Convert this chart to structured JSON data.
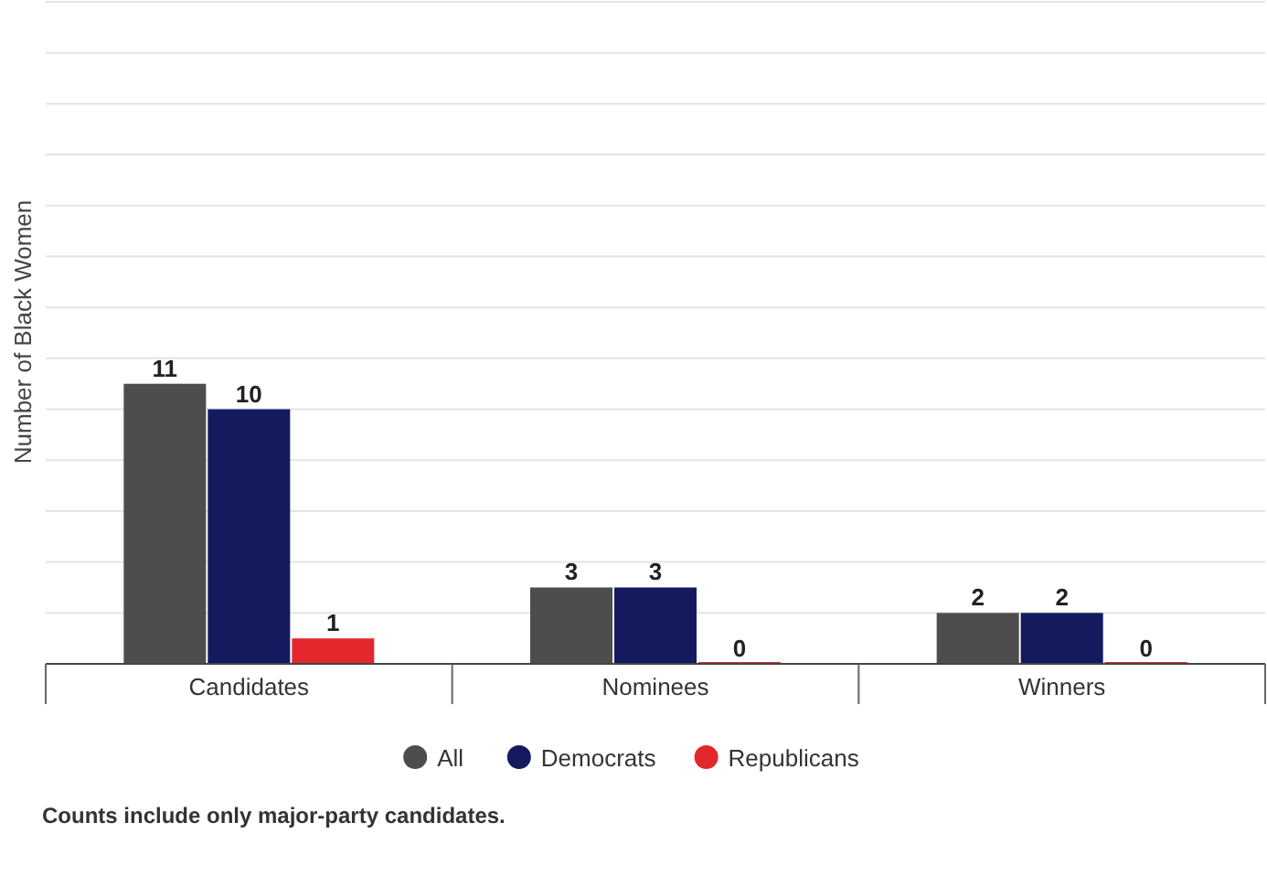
{
  "chart_data": {
    "type": "bar",
    "ylabel": "Number of Black Women",
    "categories": [
      "Candidates",
      "Nominees",
      "Winners"
    ],
    "series": [
      {
        "name": "All",
        "color": "#4d4d4d",
        "values": [
          11,
          3,
          2
        ]
      },
      {
        "name": "Democrats",
        "color": "#151a5f",
        "values": [
          10,
          3,
          2
        ]
      },
      {
        "name": "Republicans",
        "color": "#e3282d",
        "values": [
          1,
          0,
          0
        ]
      }
    ],
    "ylim": [
      0,
      26
    ],
    "yticks": [
      {
        "value": 0,
        "label": null
      },
      {
        "value": 2,
        "label": null
      },
      {
        "value": 4,
        "label": null
      },
      {
        "value": 6,
        "label": null
      },
      {
        "value": 8,
        "label": null
      },
      {
        "value": 10,
        "label": null
      },
      {
        "value": 12,
        "label": null
      },
      {
        "value": 14,
        "label": null
      },
      {
        "value": 16,
        "label": null
      },
      {
        "value": 18,
        "label": null
      },
      {
        "value": 20,
        "label": null
      },
      {
        "value": 22,
        "label": null
      },
      {
        "value": 24,
        "label": null
      },
      {
        "value": 26,
        "label": null
      }
    ],
    "grid": "y",
    "tick_labels": "x",
    "data_labels": true,
    "legend": "bottom",
    "annotations": [
      "Counts include only major-party candidates."
    ]
  }
}
